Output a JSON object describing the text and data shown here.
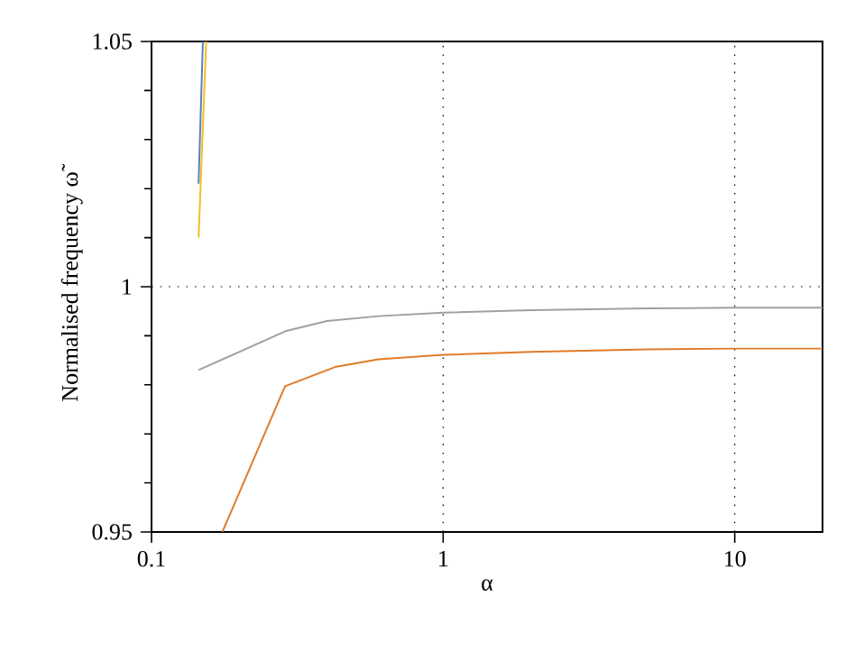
{
  "chart_data": {
    "type": "line",
    "xlabel": "α",
    "ylabel": "Normalised frequency ω̃",
    "log": "x",
    "grid": true,
    "xlim": [
      0.1,
      20
    ],
    "ylim": [
      0.95,
      1.05
    ],
    "xticks": [
      0.1,
      1,
      10
    ],
    "yticks": [
      0.95,
      1,
      1.05
    ],
    "series": [
      {
        "color": "#5b7fc0",
        "x": [
          0.145,
          0.15
        ],
        "values": [
          1.021,
          1.05
        ]
      },
      {
        "color": "#f0c020",
        "x": [
          0.145,
          0.154
        ],
        "values": [
          1.01,
          1.05
        ]
      },
      {
        "color": "#a0a0a0",
        "x": [
          0.145,
          0.29,
          0.4,
          0.6,
          1,
          2,
          5,
          10,
          20
        ],
        "values": [
          0.983,
          0.991,
          0.993,
          0.994,
          0.9947,
          0.9952,
          0.9956,
          0.9957,
          0.9957
        ]
      },
      {
        "color": "#e07b28",
        "x": [
          0.175,
          0.287,
          0.43,
          0.6,
          1,
          2,
          5,
          10,
          20
        ],
        "values": [
          0.95,
          0.9797,
          0.9837,
          0.9852,
          0.9861,
          0.9867,
          0.9872,
          0.9874,
          0.9874
        ]
      }
    ]
  }
}
